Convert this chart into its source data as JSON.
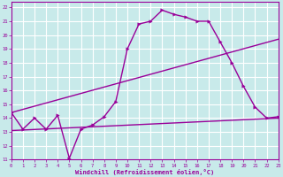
{
  "bg_color": "#c8eaea",
  "grid_color": "#ffffff",
  "line_color": "#990099",
  "xlabel": "Windchill (Refroidissement éolien,°C)",
  "xlim": [
    0,
    23
  ],
  "ylim": [
    11,
    22.4
  ],
  "xticks": [
    0,
    1,
    2,
    3,
    4,
    5,
    6,
    7,
    8,
    9,
    10,
    11,
    12,
    13,
    14,
    15,
    16,
    17,
    18,
    19,
    20,
    21,
    22,
    23
  ],
  "yticks": [
    11,
    12,
    13,
    14,
    15,
    16,
    17,
    18,
    19,
    20,
    21,
    22
  ],
  "line1_x": [
    0,
    1,
    2,
    3,
    4,
    5,
    6,
    7,
    8,
    9,
    10,
    11,
    12,
    13,
    14,
    15,
    16,
    17,
    18,
    19,
    20,
    21,
    22,
    23
  ],
  "line1_y": [
    14.4,
    13.2,
    14.0,
    13.2,
    14.2,
    11.1,
    13.2,
    13.5,
    14.1,
    15.2,
    19.0,
    20.8,
    21.0,
    21.8,
    21.5,
    21.3,
    21.0,
    21.0,
    19.5,
    18.0,
    16.3,
    14.8,
    14.0,
    14.1
  ],
  "line2_x": [
    0,
    23
  ],
  "line2_y": [
    13.1,
    14.0
  ],
  "line3_x": [
    0,
    23
  ],
  "line3_y": [
    14.4,
    19.7
  ]
}
